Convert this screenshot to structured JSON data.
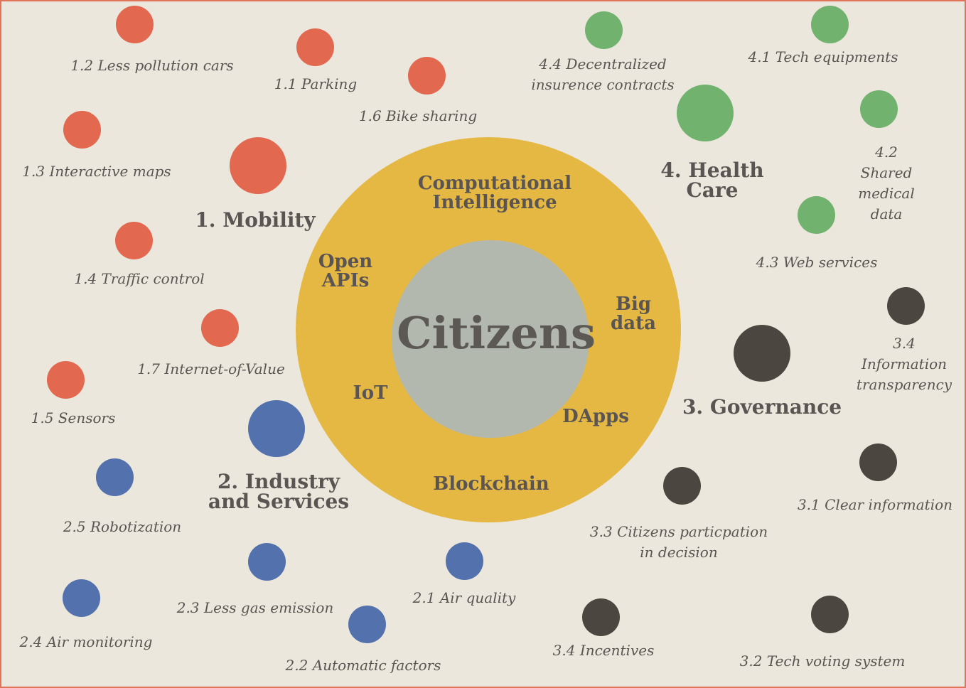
{
  "center": {
    "title": "Citizens"
  },
  "technologies": {
    "computational_intelligence": "Computational\nIntelligence",
    "open_apis": "Open\nAPIs",
    "big_data": "Big\ndata",
    "iot": "IoT",
    "dapps": "DApps",
    "blockchain": "Blockchain"
  },
  "categories": {
    "mobility": {
      "title": "1. Mobility",
      "color": "#e2684f"
    },
    "industry": {
      "title": "2. Industry\nand Services",
      "color": "#5271ad"
    },
    "governance": {
      "title": "3. Governance",
      "color": "#4b4640"
    },
    "health": {
      "title": "4. Health\nCare",
      "color": "#72b26f"
    }
  },
  "items": {
    "m_1_1": "1.1 Parking",
    "m_1_2": "1.2 Less pollution cars",
    "m_1_3": "1.3 Interactive maps",
    "m_1_4": "1.4 Traffic control",
    "m_1_5": "1.5 Sensors",
    "m_1_6": "1.6 Bike sharing",
    "m_1_7": "1.7 Internet-of-Value",
    "i_2_1": "2.1 Air quality",
    "i_2_2": "2.2 Automatic factors",
    "i_2_3": "2.3 Less gas emission",
    "i_2_4": "2.4 Air monitoring",
    "i_2_5": "2.5 Robotization",
    "g_3_1": "3.1 Clear information",
    "g_3_2": "3.2 Tech voting system",
    "g_3_3": "3.3 Citizens particpation\nin decision",
    "g_3_4a": "3.4 Information\ntransparency",
    "g_3_4b": "3.4 Incentives",
    "h_4_1": "4.1 Tech equipments",
    "h_4_2": "4.2 Shared medical\ndata",
    "h_4_3": "4.3 Web services",
    "h_4_4": "4.4 Decentralized\ninsurence contracts"
  }
}
